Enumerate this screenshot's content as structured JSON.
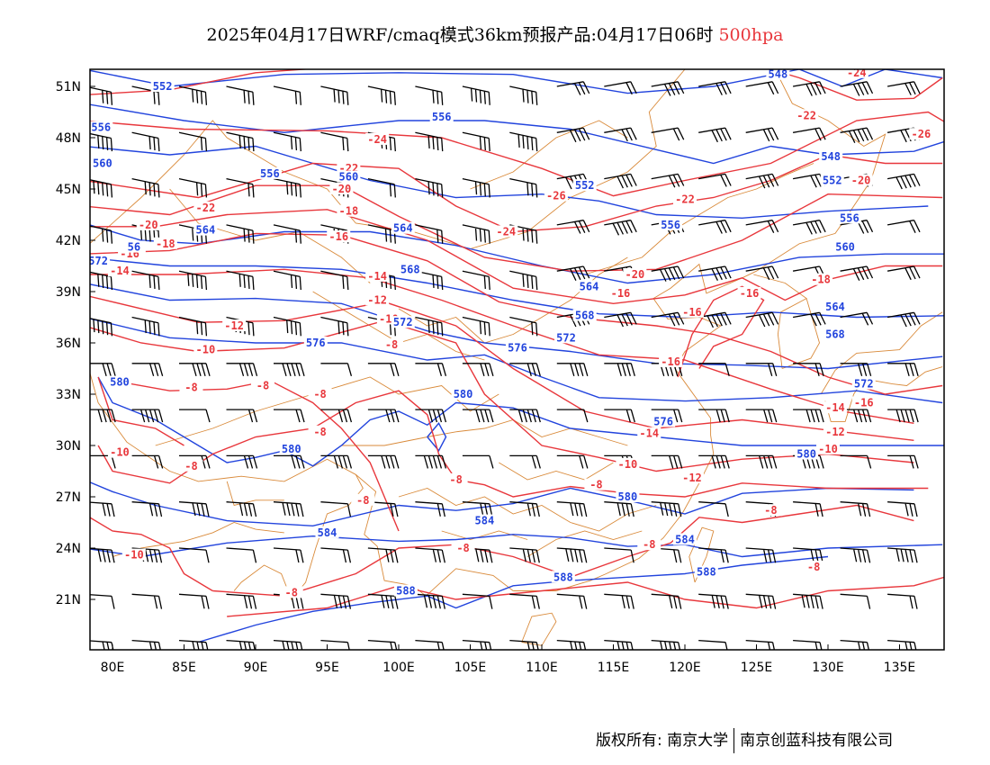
{
  "header": {
    "title": "2025年04月17日WRF/cmaq模式36km预报产品:04月17日06时",
    "level": "500hpa"
  },
  "axes": {
    "lat_labels": [
      "51N",
      "48N",
      "45N",
      "42N",
      "39N",
      "36N",
      "33N",
      "30N",
      "27N",
      "24N",
      "21N"
    ],
    "lon_labels": [
      "80E",
      "85E",
      "90E",
      "95E",
      "100E",
      "105E",
      "110E",
      "115E",
      "120E",
      "125E",
      "130E",
      "135E"
    ]
  },
  "colors": {
    "temperature": "#e8373c",
    "height": "#2244dd",
    "border": "#d98a3a",
    "wind": "#000000"
  },
  "contours": {
    "temperature": [
      {
        "label": "-26",
        "lon": 136.5,
        "lat": 48.2
      },
      {
        "label": "-24",
        "lon": 132,
        "lat": 51.8
      },
      {
        "label": "-24",
        "lon": 98.5,
        "lat": 47.9
      },
      {
        "label": "-24",
        "lon": 107.5,
        "lat": 42.5
      },
      {
        "label": "-22",
        "lon": 128.5,
        "lat": 49.3
      },
      {
        "label": "-22",
        "lon": 96.5,
        "lat": 46.2
      },
      {
        "label": "-22",
        "lon": 86.5,
        "lat": 43.9
      },
      {
        "label": "-22",
        "lon": 120,
        "lat": 44.4
      },
      {
        "label": "-20",
        "lon": 132.3,
        "lat": 45.5
      },
      {
        "label": "-20",
        "lon": 96,
        "lat": 45.0
      },
      {
        "label": "-20",
        "lon": 82.5,
        "lat": 42.9
      },
      {
        "label": "-20",
        "lon": 116.5,
        "lat": 40.0
      },
      {
        "label": "-26",
        "lon": 111,
        "lat": 44.6
      },
      {
        "label": "-18",
        "lon": 96.5,
        "lat": 43.7
      },
      {
        "label": "-18",
        "lon": 83.7,
        "lat": 41.8
      },
      {
        "label": "-18",
        "lon": 129.5,
        "lat": 39.7
      },
      {
        "label": "-16",
        "lon": 95.8,
        "lat": 42.2
      },
      {
        "label": "-16",
        "lon": 81.2,
        "lat": 41.2
      },
      {
        "label": "-16",
        "lon": 115.5,
        "lat": 38.9
      },
      {
        "label": "-16",
        "lon": 124.5,
        "lat": 38.9
      },
      {
        "label": "-16",
        "lon": 120.5,
        "lat": 37.8
      },
      {
        "label": "-16",
        "lon": 119,
        "lat": 34.9
      },
      {
        "label": "-16",
        "lon": 132.5,
        "lat": 32.5
      },
      {
        "label": "-14",
        "lon": 80.5,
        "lat": 40.2
      },
      {
        "label": "-14",
        "lon": 98.5,
        "lat": 39.9
      },
      {
        "label": "-14",
        "lon": 130.5,
        "lat": 32.2
      },
      {
        "label": "-14",
        "lon": 117.5,
        "lat": 30.7
      },
      {
        "label": "-12",
        "lon": 98.5,
        "lat": 38.5
      },
      {
        "label": "-12",
        "lon": 88.5,
        "lat": 37.0
      },
      {
        "label": "-12",
        "lon": 130.5,
        "lat": 30.8
      },
      {
        "label": "-12",
        "lon": 120.5,
        "lat": 28.1
      },
      {
        "label": "-10",
        "lon": 99.3,
        "lat": 37.4
      },
      {
        "label": "-10",
        "lon": 86.5,
        "lat": 35.6
      },
      {
        "label": "-10",
        "lon": 130,
        "lat": 29.8
      },
      {
        "label": "-10",
        "lon": 116,
        "lat": 28.9
      },
      {
        "label": "-10",
        "lon": 80.5,
        "lat": 29.6
      },
      {
        "label": "-10",
        "lon": 81.5,
        "lat": 23.6
      },
      {
        "label": "-8",
        "lon": 94.5,
        "lat": 33.0
      },
      {
        "label": "-8",
        "lon": 85.5,
        "lat": 33.4
      },
      {
        "label": "-8",
        "lon": 90.5,
        "lat": 33.5
      },
      {
        "label": "-8",
        "lon": 99.5,
        "lat": 35.9
      },
      {
        "label": "-8",
        "lon": 94.5,
        "lat": 30.8
      },
      {
        "label": "-8",
        "lon": 85.5,
        "lat": 28.8
      },
      {
        "label": "-8",
        "lon": 113.8,
        "lat": 27.7
      },
      {
        "label": "-8",
        "lon": 104,
        "lat": 28.0
      },
      {
        "label": "-8",
        "lon": 97.5,
        "lat": 26.8
      },
      {
        "label": "-8",
        "lon": 126,
        "lat": 26.2
      },
      {
        "label": "-8",
        "lon": 129,
        "lat": 22.9
      },
      {
        "label": "-8",
        "lon": 117.5,
        "lat": 24.2
      },
      {
        "label": "-8",
        "lon": 104.5,
        "lat": 24.0
      },
      {
        "label": "-8",
        "lon": 92.5,
        "lat": 21.4
      }
    ],
    "height": [
      {
        "label": "552",
        "lon": 83.5,
        "lat": 51.0
      },
      {
        "label": "556",
        "lon": 79.2,
        "lat": 48.6
      },
      {
        "label": "556",
        "lon": 103,
        "lat": 49.2
      },
      {
        "label": "556",
        "lon": 91,
        "lat": 45.9
      },
      {
        "label": "560",
        "lon": 79.3,
        "lat": 46.5
      },
      {
        "label": "560",
        "lon": 96.5,
        "lat": 45.7
      },
      {
        "label": "552",
        "lon": 113,
        "lat": 45.2
      },
      {
        "label": "556",
        "lon": 119,
        "lat": 42.9
      },
      {
        "label": "548",
        "lon": 126.5,
        "lat": 51.7
      },
      {
        "label": "548",
        "lon": 130.2,
        "lat": 46.9
      },
      {
        "label": "552",
        "lon": 130.3,
        "lat": 45.5
      },
      {
        "label": "556",
        "lon": 131.5,
        "lat": 43.3
      },
      {
        "label": "560",
        "lon": 131.2,
        "lat": 41.6
      },
      {
        "label": "564",
        "lon": 86.5,
        "lat": 42.6
      },
      {
        "label": "564",
        "lon": 100.3,
        "lat": 42.7
      },
      {
        "label": "564",
        "lon": 113.3,
        "lat": 39.3
      },
      {
        "label": "564",
        "lon": 130.5,
        "lat": 38.1
      },
      {
        "label": "56",
        "lon": 81.5,
        "lat": 41.6
      },
      {
        "label": "568",
        "lon": 100.8,
        "lat": 40.3
      },
      {
        "label": "568",
        "lon": 113,
        "lat": 37.6
      },
      {
        "label": "568",
        "lon": 130.5,
        "lat": 36.5
      },
      {
        "label": "572",
        "lon": 79.0,
        "lat": 40.8
      },
      {
        "label": "572",
        "lon": 100.3,
        "lat": 37.2
      },
      {
        "label": "572",
        "lon": 111.7,
        "lat": 36.3
      },
      {
        "label": "572",
        "lon": 132.5,
        "lat": 33.6
      },
      {
        "label": "576",
        "lon": 94.2,
        "lat": 36.0
      },
      {
        "label": "576",
        "lon": 108.3,
        "lat": 35.7
      },
      {
        "label": "576",
        "lon": 118.5,
        "lat": 31.4
      },
      {
        "label": "580",
        "lon": 80.5,
        "lat": 33.7
      },
      {
        "label": "580",
        "lon": 104.5,
        "lat": 33.0
      },
      {
        "label": "580",
        "lon": 92.5,
        "lat": 29.8
      },
      {
        "label": "580",
        "lon": 128.5,
        "lat": 29.5
      },
      {
        "label": "580",
        "lon": 116,
        "lat": 27.0
      },
      {
        "label": "584",
        "lon": 95.0,
        "lat": 24.9
      },
      {
        "label": "584",
        "lon": 106,
        "lat": 25.6
      },
      {
        "label": "584",
        "lon": 120,
        "lat": 24.5
      },
      {
        "label": "588",
        "lon": 100.5,
        "lat": 21.5
      },
      {
        "label": "588",
        "lon": 111.5,
        "lat": 22.3
      },
      {
        "label": "588",
        "lon": 121.5,
        "lat": 22.6
      }
    ]
  }
}
